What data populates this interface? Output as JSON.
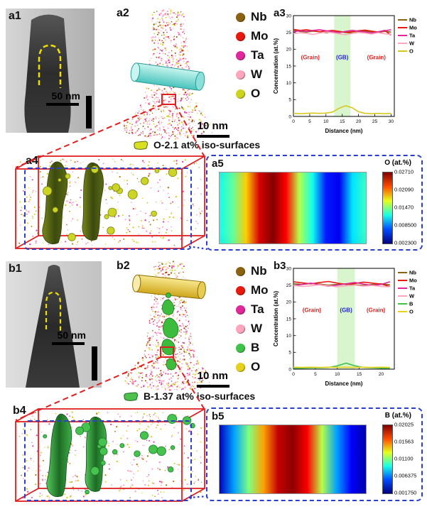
{
  "figure": {
    "panels": {
      "a1": {
        "label": "a1",
        "scale_bar": "50 nm"
      },
      "a2": {
        "label": "a2",
        "scale_bar": "10 nm"
      },
      "a3": {
        "label": "a3"
      },
      "a4": {
        "label": "a4",
        "caption": "O-2.1 at% iso-surfaces"
      },
      "a5": {
        "label": "a5"
      },
      "b1": {
        "label": "b1",
        "scale_bar": "50 nm"
      },
      "b2": {
        "label": "b2",
        "scale_bar": "10 nm"
      },
      "b3": {
        "label": "b3"
      },
      "b4": {
        "label": "b4",
        "caption": "B-1.37 at% iso-surfaces"
      },
      "b5": {
        "label": "b5"
      }
    },
    "legend_a": {
      "items": [
        {
          "label": "Nb",
          "color": "#8a6212"
        },
        {
          "label": "Mo",
          "color": "#e8190f"
        },
        {
          "label": "Ta",
          "color": "#e0289b"
        },
        {
          "label": "W",
          "color": "#ffa6bd"
        },
        {
          "label": "O",
          "color": "#cdd41e"
        }
      ]
    },
    "legend_b": {
      "items": [
        {
          "label": "Nb",
          "color": "#8a6212"
        },
        {
          "label": "Mo",
          "color": "#e8190f"
        },
        {
          "label": "Ta",
          "color": "#e0289b"
        },
        {
          "label": "W",
          "color": "#ffa6bd"
        },
        {
          "label": "B",
          "color": "#3fc24a"
        },
        {
          "label": "O",
          "color": "#e6d21c"
        }
      ]
    }
  },
  "chart_data": [
    {
      "id": "a3",
      "type": "line",
      "xlabel": "Distance (nm)",
      "ylabel": "Concentration (at.%)",
      "xlim": [
        0,
        31
      ],
      "ylim": [
        0,
        30
      ],
      "xticks": [
        0,
        5,
        10,
        15,
        20,
        25,
        30
      ],
      "yticks": [
        0,
        5,
        10,
        15,
        20,
        25,
        30
      ],
      "gb_band": [
        12.5,
        17.5
      ],
      "band_color": "#d8f5cd",
      "annotations": [
        {
          "text": "(Grain)",
          "x": 5.2,
          "y": 17,
          "color": "#e02020"
        },
        {
          "text": "(GB)",
          "x": 15,
          "y": 17,
          "color": "#2525cf"
        },
        {
          "text": "(Grain)",
          "x": 25.5,
          "y": 17,
          "color": "#e02020"
        }
      ],
      "x": [
        0,
        2,
        4,
        6,
        8,
        10,
        12,
        14,
        16,
        18,
        20,
        22,
        24,
        26,
        28,
        30
      ],
      "series": [
        {
          "name": "Nb",
          "color": "#8a6212",
          "values": [
            25.6,
            25.3,
            25.1,
            25.4,
            25.2,
            24.9,
            25.1,
            25.3,
            25.0,
            24.8,
            25.1,
            25.4,
            25.2,
            25.0,
            25.3,
            25.1
          ]
        },
        {
          "name": "Mo",
          "color": "#e8190f",
          "values": [
            25.9,
            25.6,
            25.8,
            25.5,
            25.2,
            25.4,
            25.6,
            25.3,
            25.0,
            25.2,
            25.5,
            25.7,
            25.4,
            25.1,
            25.6,
            24.2
          ]
        },
        {
          "name": "Ta",
          "color": "#e0289b",
          "values": [
            25.2,
            25.5,
            25.3,
            25.6,
            25.8,
            25.5,
            25.2,
            24.9,
            25.3,
            25.6,
            25.4,
            25.1,
            24.8,
            25.2,
            25.5,
            25.8
          ]
        },
        {
          "name": "W",
          "color": "#ffa6bd",
          "values": [
            24.6,
            24.9,
            24.7,
            24.4,
            24.8,
            25.1,
            24.9,
            24.6,
            24.3,
            24.7,
            25.0,
            24.8,
            24.5,
            24.9,
            24.6,
            24.4
          ]
        },
        {
          "name": "O",
          "color": "#d8c81e",
          "values": [
            0.9,
            0.8,
            0.9,
            1.0,
            0.9,
            1.0,
            1.3,
            2.4,
            3.2,
            2.6,
            1.4,
            0.9,
            0.8,
            0.9,
            0.8,
            0.9
          ]
        }
      ]
    },
    {
      "id": "b3",
      "type": "line",
      "xlabel": "Distance (nm)",
      "ylabel": "Concentration (at.%)",
      "xlim": [
        0,
        23
      ],
      "ylim": [
        0,
        30
      ],
      "xticks": [
        0,
        5,
        10,
        15,
        20
      ],
      "yticks": [
        0,
        5,
        10,
        15,
        20,
        25,
        30
      ],
      "gb_band": [
        10,
        14
      ],
      "band_color": "#d8f5cd",
      "annotations": [
        {
          "text": "(Grain)",
          "x": 4.2,
          "y": 17,
          "color": "#e02020"
        },
        {
          "text": "(GB)",
          "x": 12,
          "y": 17,
          "color": "#2525cf"
        },
        {
          "text": "(Grain)",
          "x": 18.8,
          "y": 17,
          "color": "#e02020"
        }
      ],
      "x": [
        0,
        2,
        4,
        6,
        8,
        10,
        12,
        14,
        16,
        18,
        20,
        22
      ],
      "series": [
        {
          "name": "Nb",
          "color": "#8a6212",
          "values": [
            25.4,
            25.2,
            25.5,
            25.3,
            25.0,
            25.2,
            25.4,
            25.1,
            24.9,
            25.2,
            25.4,
            25.1
          ]
        },
        {
          "name": "Mo",
          "color": "#e8190f",
          "values": [
            26.0,
            25.7,
            25.4,
            25.8,
            26.1,
            25.6,
            25.2,
            25.5,
            25.9,
            25.6,
            25.3,
            24.6
          ]
        },
        {
          "name": "Ta",
          "color": "#e0289b",
          "values": [
            24.8,
            25.2,
            25.6,
            25.1,
            24.7,
            25.0,
            25.4,
            25.8,
            25.3,
            24.9,
            25.2,
            26.0
          ]
        },
        {
          "name": "W",
          "color": "#ffa6bd",
          "values": [
            24.9,
            24.6,
            24.8,
            25.1,
            24.8,
            24.5,
            24.8,
            25.0,
            24.7,
            24.9,
            24.6,
            24.5
          ]
        },
        {
          "name": "B",
          "color": "#3fc24a",
          "values": [
            0.3,
            0.3,
            0.4,
            0.4,
            0.5,
            1.0,
            1.8,
            1.0,
            0.5,
            0.4,
            0.3,
            0.3
          ]
        },
        {
          "name": "O",
          "color": "#e6d21c",
          "values": [
            0.6,
            0.5,
            0.6,
            0.5,
            0.6,
            0.5,
            0.6,
            0.5,
            0.6,
            0.5,
            0.6,
            0.5
          ]
        }
      ]
    },
    {
      "id": "a5",
      "type": "heatmap",
      "colorbar_title": "O (at.%)",
      "colorbar_ticks": [
        "0.02710",
        "0.02090",
        "0.01470",
        "0.008500",
        "0.002300"
      ],
      "value_range": [
        0.0023,
        0.0271
      ],
      "x_profile": [
        0.012,
        0.014,
        0.019,
        0.025,
        0.027,
        0.024,
        0.016,
        0.012,
        0.006,
        0.005,
        0.011,
        0.013
      ]
    },
    {
      "id": "b5",
      "type": "heatmap",
      "colorbar_title": "B (at.%)",
      "colorbar_ticks": [
        "0.02025",
        "0.01563",
        "0.01100",
        "0.006375",
        "0.001750"
      ],
      "value_range": [
        0.00175,
        0.02025
      ],
      "x_profile": [
        0.003,
        0.007,
        0.011,
        0.015,
        0.019,
        0.02,
        0.018,
        0.012,
        0.007,
        0.004,
        0.0025
      ]
    }
  ]
}
